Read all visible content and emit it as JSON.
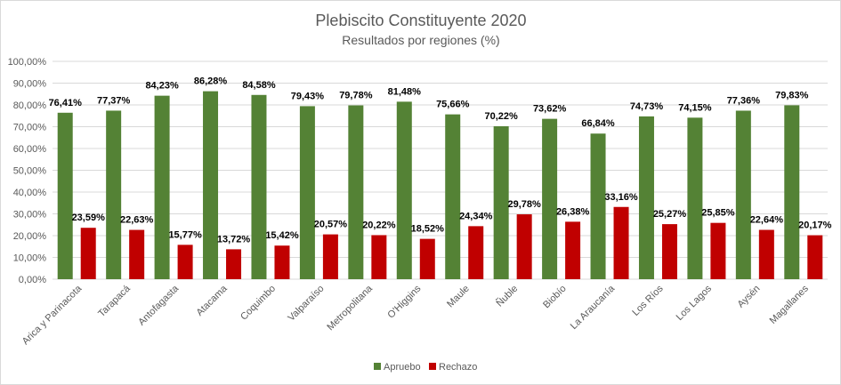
{
  "chart_data": {
    "type": "bar",
    "title": "Plebiscito Constituyente 2020",
    "subtitle": "Resultados por regiones (%)",
    "categories": [
      "Arica y Parinacota",
      "Tarapacá",
      "Antofagasta",
      "Atacama",
      "Coquimbo",
      "Valparaíso",
      "Metropolitana",
      "O'Higgins",
      "Maule",
      "Ñuble",
      "Biobío",
      "La Araucanía",
      "Los Ríos",
      "Los Lagos",
      "Aysén",
      "Magallanes"
    ],
    "series": [
      {
        "name": "Apruebo",
        "color": "#548235",
        "values": [
          76.41,
          77.37,
          84.23,
          86.28,
          84.58,
          79.43,
          79.78,
          81.48,
          75.66,
          70.22,
          73.62,
          66.84,
          74.73,
          74.15,
          77.36,
          79.83
        ],
        "labels": [
          "76,41%",
          "77,37%",
          "84,23%",
          "86,28%",
          "84,58%",
          "79,43%",
          "79,78%",
          "81,48%",
          "75,66%",
          "70,22%",
          "73,62%",
          "66,84%",
          "74,73%",
          "74,15%",
          "77,36%",
          "79,83%"
        ]
      },
      {
        "name": "Rechazo",
        "color": "#c00000",
        "values": [
          23.59,
          22.63,
          15.77,
          13.72,
          15.42,
          20.57,
          20.22,
          18.52,
          24.34,
          29.78,
          26.38,
          33.16,
          25.27,
          25.85,
          22.64,
          20.17
        ],
        "labels": [
          "23,59%",
          "22,63%",
          "15,77%",
          "13,72%",
          "15,42%",
          "20,57%",
          "20,22%",
          "18,52%",
          "24,34%",
          "29,78%",
          "26,38%",
          "33,16%",
          "25,27%",
          "25,85%",
          "22,64%",
          "20,17%"
        ]
      }
    ],
    "ylim": [
      0,
      100
    ],
    "ytick_step": 10,
    "ytick_labels": [
      "0,00%",
      "10,00%",
      "20,00%",
      "30,00%",
      "40,00%",
      "50,00%",
      "60,00%",
      "70,00%",
      "80,00%",
      "90,00%",
      "100,00%"
    ],
    "grid": true,
    "legend": "bottom"
  }
}
